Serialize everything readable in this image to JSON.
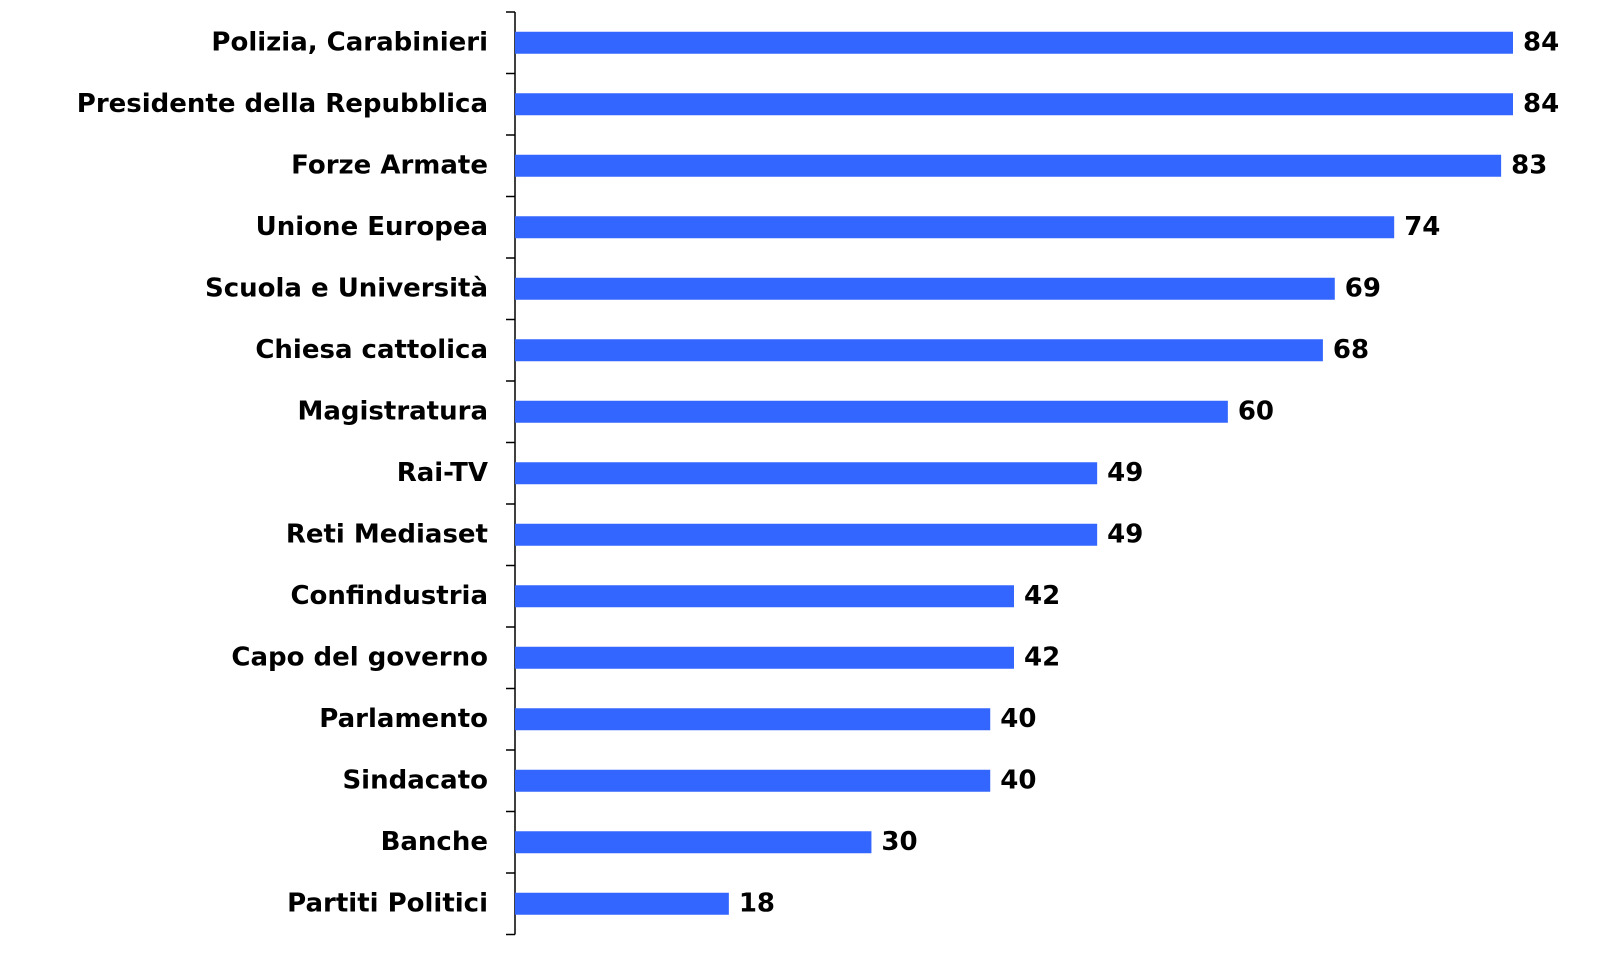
{
  "chart_data": {
    "type": "hbar",
    "categories": [
      "Polizia, Carabinieri",
      "Presidente della Repubblica",
      "Forze Armate",
      "Unione Europea",
      "Scuola e Università",
      "Chiesa cattolica",
      "Magistratura",
      "Rai-TV",
      "Reti Mediaset",
      "Confindustria",
      "Capo del governo",
      "Parlamento",
      "Sindacato",
      "Banche",
      "Partiti Politici"
    ],
    "values": [
      84,
      84,
      83,
      74,
      69,
      68,
      60,
      49,
      49,
      42,
      42,
      40,
      40,
      30,
      18
    ],
    "color": "#3366ff",
    "xlim": [
      0,
      84
    ]
  }
}
